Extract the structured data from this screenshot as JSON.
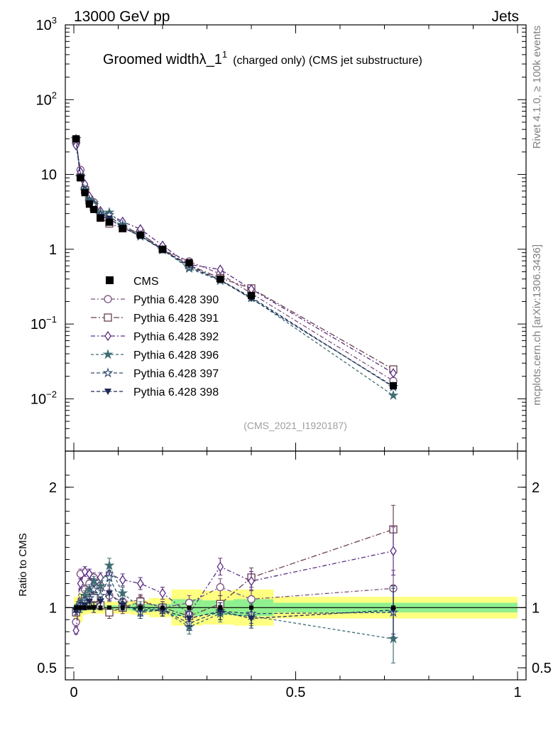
{
  "header": {
    "left": "13000 GeV pp",
    "right": "Jets",
    "title_main": "Groomed width",
    "title_symbol": "λ_1",
    "title_sup": "1",
    "title_sub": "(charged only) (CMS jet substructure)",
    "analysis_id": "(CMS_2021_I1920187)",
    "side_label_top": "Rivet 4.1.0, ≥ 100k events",
    "side_label_bottom": "mcplots.cern.ch [arXiv:1306.3436]"
  },
  "colors": {
    "data": "#000000",
    "p390": "#7b4f7d",
    "p391": "#6b3f4f",
    "p392": "#5a2d82",
    "p396": "#3f6d72",
    "p397": "#2c4a6a",
    "p398": "#1e2a55",
    "band_outer": "#ffff80",
    "band_inner": "#90f090"
  },
  "chart_data": {
    "type": "line",
    "title": "Groomed width λ_1^1 (charged only) (CMS jet substructure)",
    "xlabel": "",
    "ylabel_ratio": "Ratio to CMS",
    "xlim": [
      0,
      1
    ],
    "ylim_main": [
      0.002,
      1000
    ],
    "ylim_ratio": [
      0.4,
      2.3
    ],
    "yscale_main": "log",
    "y_ticks_main": [
      {
        "v": 0.01,
        "label": "10",
        "sup": "−2"
      },
      {
        "v": 0.1,
        "label": "10",
        "sup": "−1"
      },
      {
        "v": 1,
        "label": "1",
        "sup": ""
      },
      {
        "v": 10,
        "label": "10",
        "sup": ""
      },
      {
        "v": 100,
        "label": "10",
        "sup": "2"
      },
      {
        "v": 1000,
        "label": "10",
        "sup": "3"
      }
    ],
    "y_ticks_ratio": [
      {
        "v": 0.5,
        "label": "0.5"
      },
      {
        "v": 1,
        "label": "1"
      },
      {
        "v": 2,
        "label": "2"
      }
    ],
    "x_ticks": [
      {
        "v": 0,
        "label": "0"
      },
      {
        "v": 0.5,
        "label": "0.5"
      },
      {
        "v": 1,
        "label": "1"
      }
    ],
    "x": [
      0.005,
      0.015,
      0.025,
      0.035,
      0.045,
      0.06,
      0.08,
      0.11,
      0.15,
      0.2,
      0.26,
      0.33,
      0.4,
      0.72
    ],
    "bin_edges": [
      0,
      0.01,
      0.02,
      0.03,
      0.04,
      0.05,
      0.07,
      0.09,
      0.13,
      0.17,
      0.22,
      0.29,
      0.36,
      0.45,
      1.0
    ],
    "data_values": [
      30,
      9,
      5.7,
      4.0,
      3.4,
      2.6,
      2.3,
      1.9,
      1.55,
      1.0,
      0.66,
      0.4,
      0.24,
      0.015
    ],
    "band_outer": [
      0.09,
      0.12,
      0.06,
      0.05,
      0.05,
      0.05,
      0.05,
      0.05,
      0.06,
      0.08,
      0.15,
      0.14,
      0.15,
      0.09
    ],
    "band_inner": [
      0.03,
      0.04,
      0.02,
      0.02,
      0.02,
      0.02,
      0.02,
      0.02,
      0.03,
      0.03,
      0.07,
      0.06,
      0.07,
      0.04
    ],
    "series": [
      {
        "name": "Pythia 6.428 390",
        "marker": "circle-open",
        "dash": "6,3,2,3",
        "color_key": "p390",
        "ratio": [
          0.88,
          1.28,
          1.15,
          1.2,
          1.25,
          1.18,
          1.1,
          1.05,
          1.06,
          1.0,
          1.04,
          1.17,
          1.07,
          1.16
        ],
        "err": [
          0.03,
          0.04,
          0.04,
          0.04,
          0.04,
          0.04,
          0.05,
          0.05,
          0.05,
          0.05,
          0.06,
          0.07,
          0.08,
          0.15
        ]
      },
      {
        "name": "Pythia 6.428 391",
        "marker": "square-open",
        "dash": "8,3,2,3",
        "color_key": "p391",
        "ratio": [
          0.96,
          1.02,
          1.08,
          1.12,
          1.08,
          1.02,
          0.96,
          1.0,
          1.05,
          1.0,
          0.93,
          1.03,
          1.25,
          1.65
        ],
        "err": [
          0.03,
          0.04,
          0.04,
          0.04,
          0.04,
          0.04,
          0.05,
          0.05,
          0.05,
          0.05,
          0.06,
          0.07,
          0.08,
          0.2
        ]
      },
      {
        "name": "Pythia 6.428 392",
        "marker": "diamond-open",
        "dash": "6,3,2,3",
        "color_key": "p392",
        "ratio": [
          0.81,
          1.2,
          1.3,
          1.28,
          1.2,
          1.25,
          1.28,
          1.23,
          1.2,
          1.12,
          0.95,
          1.34,
          1.22,
          1.47
        ],
        "err": [
          0.03,
          0.04,
          0.04,
          0.04,
          0.04,
          0.04,
          0.05,
          0.05,
          0.05,
          0.05,
          0.06,
          0.07,
          0.08,
          0.2
        ]
      },
      {
        "name": "Pythia 6.428 396",
        "marker": "star-filled",
        "dash": "4,3",
        "color_key": "p396",
        "ratio": [
          0.99,
          1.04,
          1.1,
          1.15,
          1.22,
          1.18,
          1.35,
          1.12,
          1.0,
          0.98,
          0.84,
          0.95,
          0.93,
          0.74
        ],
        "err": [
          0.03,
          0.04,
          0.04,
          0.04,
          0.04,
          0.04,
          0.06,
          0.05,
          0.05,
          0.05,
          0.06,
          0.07,
          0.08,
          0.2
        ]
      },
      {
        "name": "Pythia 6.428 397",
        "marker": "star-open",
        "dash": "5,3",
        "color_key": "p397",
        "ratio": [
          0.99,
          1.02,
          1.05,
          1.08,
          1.15,
          1.1,
          1.25,
          1.03,
          0.96,
          0.98,
          0.87,
          0.97,
          0.95,
          0.96
        ],
        "err": [
          0.03,
          0.04,
          0.04,
          0.04,
          0.04,
          0.04,
          0.06,
          0.05,
          0.05,
          0.05,
          0.06,
          0.07,
          0.08,
          0.2
        ]
      },
      {
        "name": "Pythia 6.428 398",
        "marker": "triangle-down-filled",
        "dash": "5,3",
        "color_key": "p398",
        "ratio": [
          0.97,
          1.0,
          1.02,
          1.05,
          1.0,
          1.05,
          1.12,
          1.02,
          0.98,
          0.98,
          0.91,
          0.97,
          0.91,
          0.98
        ],
        "err": [
          0.03,
          0.04,
          0.04,
          0.04,
          0.04,
          0.04,
          0.06,
          0.05,
          0.05,
          0.05,
          0.06,
          0.07,
          0.08,
          0.2
        ]
      }
    ],
    "legend": {
      "placement": "mid-left",
      "data_label": "CMS",
      "entries": [
        "Pythia 6.428 390",
        "Pythia 6.428 391",
        "Pythia 6.428 392",
        "Pythia 6.428 396",
        "Pythia 6.428 397",
        "Pythia 6.428 398"
      ]
    }
  }
}
